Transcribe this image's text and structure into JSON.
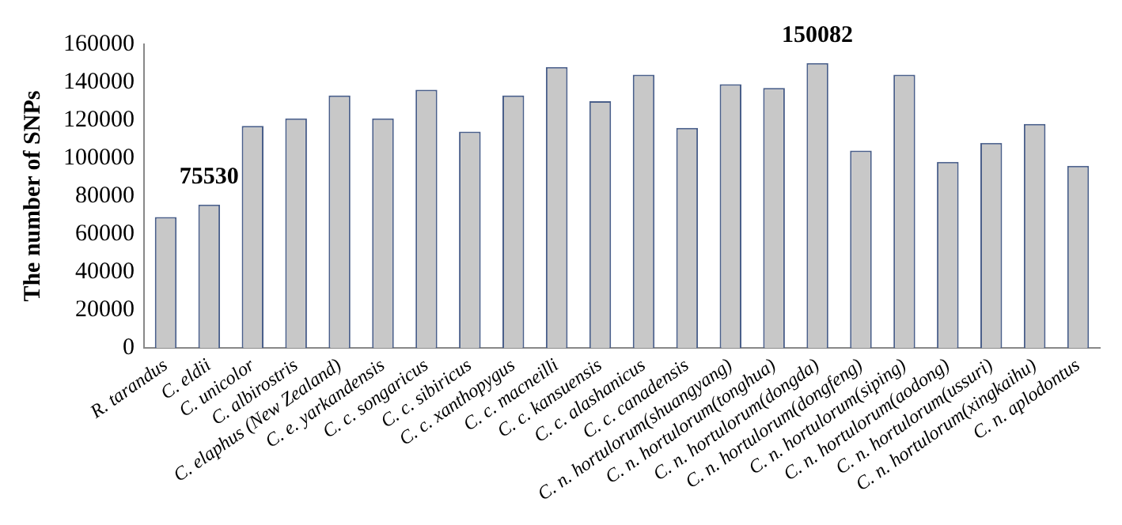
{
  "chart_data": {
    "type": "bar",
    "ylabel": "The number of SNPs",
    "categories": [
      "R. tarandus",
      "C. eldii",
      "C. unicolor",
      "C. albirostris",
      "C. elaphus (New Zealand)",
      "C. e. yarkandensis",
      "C. c. songaricus",
      "C. c. sibiricus",
      "C. c. xanthopygus",
      "C. c. macneilli",
      "C. c. kansuensis",
      "C. c. alashanicus",
      "C. c. canadensis",
      "C. n. hortulorum(shuangyang)",
      "C. n. hortulorum(tonghua)",
      "C. n. hortulorum(dongda)",
      "C. n. hortulorum(dongfeng)",
      "C. n. hortulorum(siping)",
      "C. n. hortulorum(aodong)",
      "C. n. hortulorum(ussuri)",
      "C. n. hortulorum(xingkaihu)",
      "C. n. aplodontus"
    ],
    "values": [
      69000,
      75530,
      117000,
      121000,
      133000,
      121000,
      136000,
      114000,
      133000,
      148000,
      130000,
      144000,
      116000,
      139000,
      137000,
      150082,
      104000,
      144000,
      98000,
      108000,
      118000,
      96000
    ],
    "value_labels": [
      null,
      "75530",
      null,
      null,
      null,
      null,
      null,
      null,
      null,
      null,
      null,
      null,
      null,
      null,
      null,
      "150082",
      null,
      null,
      null,
      null,
      null,
      null
    ],
    "color": "#c8c8c8",
    "ylim": [
      0,
      160000
    ],
    "yticks": [
      0,
      20000,
      40000,
      60000,
      80000,
      100000,
      120000,
      140000,
      160000
    ],
    "grid": false,
    "legend": false
  }
}
